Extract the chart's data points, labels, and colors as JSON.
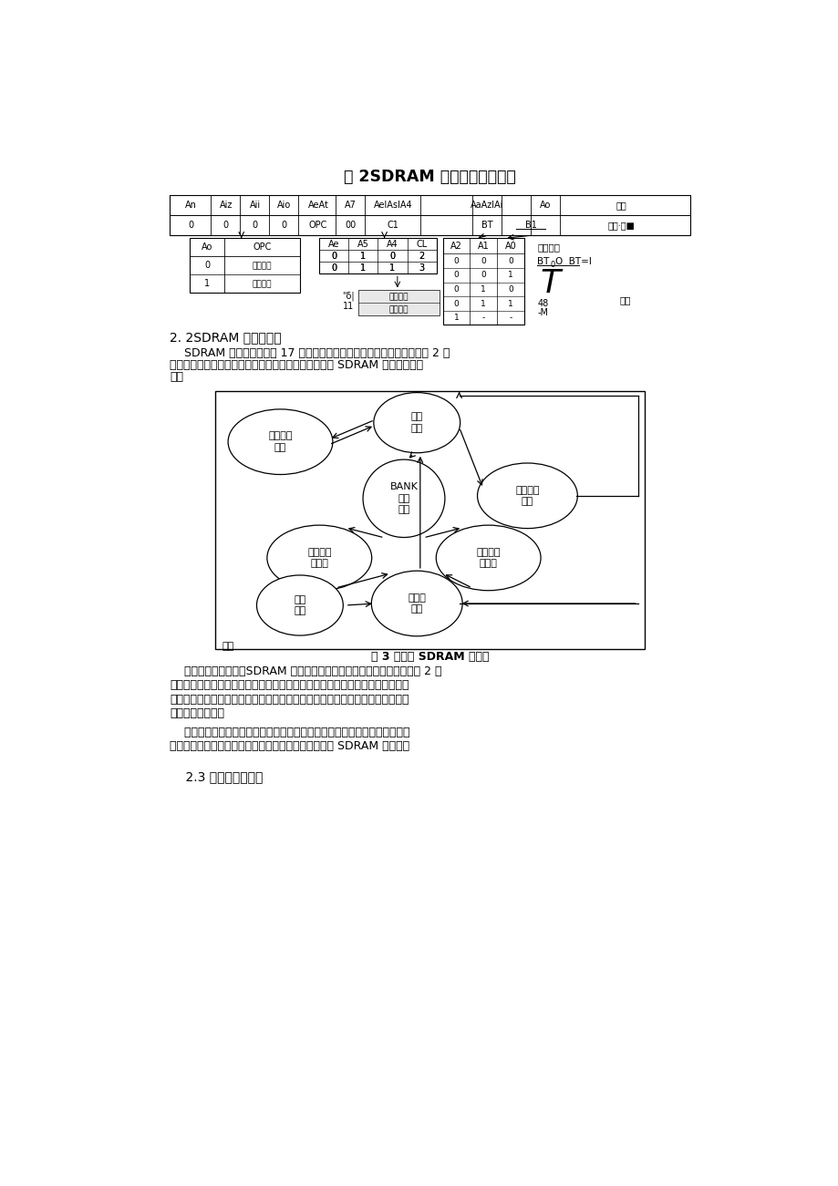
{
  "background_color": "#ffffff",
  "page_width": 9.2,
  "page_height": 13.01,
  "title_table": "表 2SDRAM 模式寄存器真値表",
  "section_heading1": "2. 2SDRAM 的状态流程",
  "para1_indent": "    SDRAM 的完整状态机由 17 个状态构成，且状态转移是非随机的（如图 2 所",
  "para1_line2": "示）。正是如此众多的状态及其复杂的转换关系，导致 SDRAM 的控制较为复",
  "para1_line3": "杂。",
  "fig_caption": "图 3 简化的 SDRAM 状态机",
  "para2_line1": "    需要特别说明的是，SDRAM 的状态转移有自动转移与人工转移之分（图 2 中",
  "para2_line2": "以粗细箭头加以区别）。自动转移在当前状态结束后立即进入下一个状态；而人",
  "para2_line3": "工转移在当前状态结束后即停留在当前状态，只有一条当前状态允许的命令才能",
  "para2_line4": "进入下一个状态。",
  "para3_line1": "    可以想象，自行设计如此复杂的控制流程绝非易事。値得庆幸的是，在大多",
  "para3_line2": "数应用中并不需要完备的状态机。下面讨论一种简化的 SDRAM 状态机。",
  "section_heading2": "    2.3 简化的状态流程"
}
